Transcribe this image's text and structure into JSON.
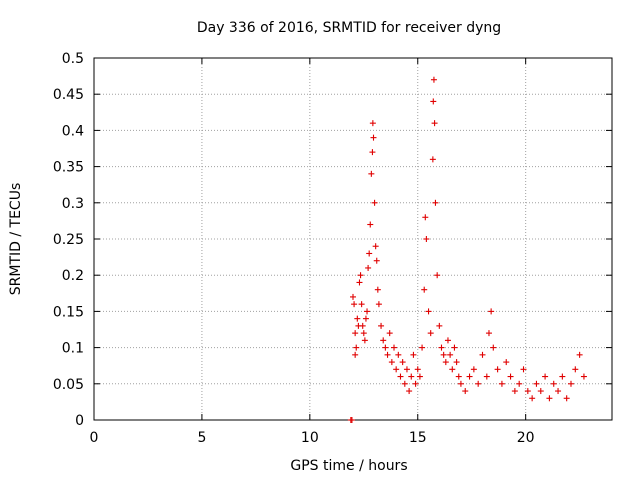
{
  "chart_data": {
    "type": "scatter",
    "title": "Day 336 of 2016, SRMTID for receiver dyng",
    "xlabel": "GPS time / hours",
    "ylabel": "SRMTID / TECUs",
    "xlim": [
      0,
      24
    ],
    "ylim": [
      0,
      0.5
    ],
    "x_ticks": [
      0,
      5,
      10,
      15,
      20
    ],
    "y_ticks": [
      0,
      0.05,
      0.1,
      0.15,
      0.2,
      0.25,
      0.3,
      0.35,
      0.4,
      0.45,
      0.5
    ],
    "grid": true,
    "marker": "+",
    "marker_color": "#e00000",
    "series": [
      {
        "name": "SRMTID",
        "points": [
          [
            11.9,
            0.0
          ],
          [
            11.95,
            0.0
          ],
          [
            12.0,
            0.17
          ],
          [
            12.05,
            0.16
          ],
          [
            12.1,
            0.12
          ],
          [
            12.1,
            0.09
          ],
          [
            12.15,
            0.1
          ],
          [
            12.2,
            0.14
          ],
          [
            12.25,
            0.13
          ],
          [
            12.3,
            0.19
          ],
          [
            12.35,
            0.2
          ],
          [
            12.4,
            0.16
          ],
          [
            12.45,
            0.13
          ],
          [
            12.5,
            0.12
          ],
          [
            12.55,
            0.11
          ],
          [
            12.6,
            0.14
          ],
          [
            12.65,
            0.15
          ],
          [
            12.7,
            0.21
          ],
          [
            12.75,
            0.23
          ],
          [
            12.8,
            0.27
          ],
          [
            12.85,
            0.34
          ],
          [
            12.9,
            0.37
          ],
          [
            12.92,
            0.41
          ],
          [
            12.95,
            0.39
          ],
          [
            13.0,
            0.3
          ],
          [
            13.05,
            0.24
          ],
          [
            13.1,
            0.22
          ],
          [
            13.15,
            0.18
          ],
          [
            13.2,
            0.16
          ],
          [
            13.3,
            0.13
          ],
          [
            13.4,
            0.11
          ],
          [
            13.5,
            0.1
          ],
          [
            13.6,
            0.09
          ],
          [
            13.7,
            0.12
          ],
          [
            13.8,
            0.08
          ],
          [
            13.9,
            0.1
          ],
          [
            14.0,
            0.07
          ],
          [
            14.1,
            0.09
          ],
          [
            14.2,
            0.06
          ],
          [
            14.3,
            0.08
          ],
          [
            14.4,
            0.05
          ],
          [
            14.5,
            0.07
          ],
          [
            14.6,
            0.04
          ],
          [
            14.7,
            0.06
          ],
          [
            14.8,
            0.09
          ],
          [
            14.9,
            0.05
          ],
          [
            15.0,
            0.07
          ],
          [
            15.1,
            0.06
          ],
          [
            15.2,
            0.1
          ],
          [
            15.3,
            0.18
          ],
          [
            15.35,
            0.28
          ],
          [
            15.4,
            0.25
          ],
          [
            15.5,
            0.15
          ],
          [
            15.6,
            0.12
          ],
          [
            15.7,
            0.36
          ],
          [
            15.72,
            0.44
          ],
          [
            15.75,
            0.47
          ],
          [
            15.78,
            0.41
          ],
          [
            15.82,
            0.3
          ],
          [
            15.9,
            0.2
          ],
          [
            16.0,
            0.13
          ],
          [
            16.1,
            0.1
          ],
          [
            16.2,
            0.09
          ],
          [
            16.3,
            0.08
          ],
          [
            16.4,
            0.11
          ],
          [
            16.5,
            0.09
          ],
          [
            16.6,
            0.07
          ],
          [
            16.7,
            0.1
          ],
          [
            16.8,
            0.08
          ],
          [
            16.9,
            0.06
          ],
          [
            17.0,
            0.05
          ],
          [
            17.2,
            0.04
          ],
          [
            17.4,
            0.06
          ],
          [
            17.6,
            0.07
          ],
          [
            17.8,
            0.05
          ],
          [
            18.0,
            0.09
          ],
          [
            18.2,
            0.06
          ],
          [
            18.3,
            0.12
          ],
          [
            18.4,
            0.15
          ],
          [
            18.5,
            0.1
          ],
          [
            18.7,
            0.07
          ],
          [
            18.9,
            0.05
          ],
          [
            19.1,
            0.08
          ],
          [
            19.3,
            0.06
          ],
          [
            19.5,
            0.04
          ],
          [
            19.7,
            0.05
          ],
          [
            19.9,
            0.07
          ],
          [
            20.1,
            0.04
          ],
          [
            20.3,
            0.03
          ],
          [
            20.5,
            0.05
          ],
          [
            20.7,
            0.04
          ],
          [
            20.9,
            0.06
          ],
          [
            21.1,
            0.03
          ],
          [
            21.3,
            0.05
          ],
          [
            21.5,
            0.04
          ],
          [
            21.7,
            0.06
          ],
          [
            21.9,
            0.03
          ],
          [
            22.1,
            0.05
          ],
          [
            22.3,
            0.07
          ],
          [
            22.5,
            0.09
          ],
          [
            22.7,
            0.06
          ]
        ]
      }
    ]
  }
}
